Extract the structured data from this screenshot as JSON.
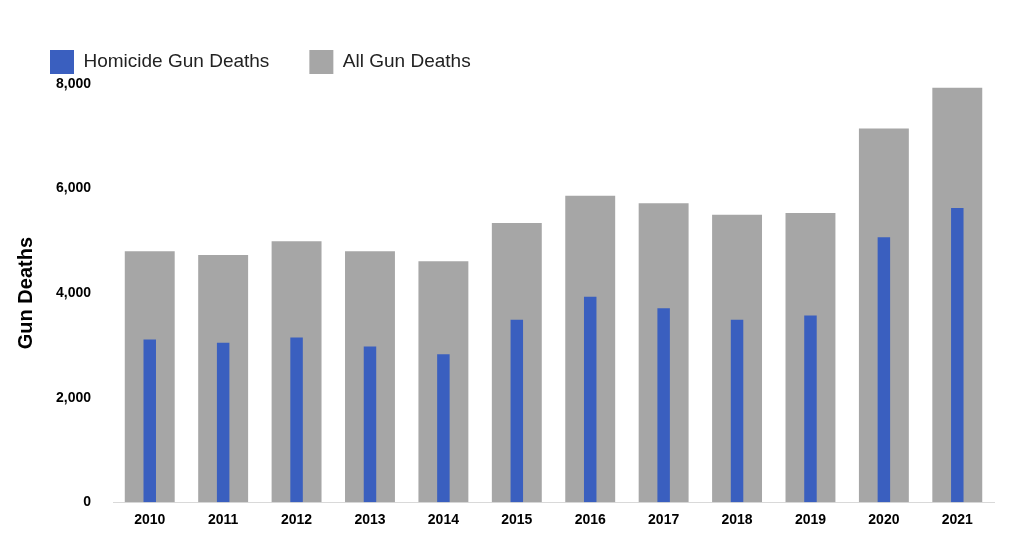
{
  "chart_data": {
    "type": "bar",
    "categories": [
      "2010",
      "2011",
      "2012",
      "2013",
      "2014",
      "2015",
      "2016",
      "2017",
      "2018",
      "2019",
      "2020",
      "2021"
    ],
    "series": [
      {
        "name": "All Gun Deaths",
        "color": "#a6a6a6",
        "values": [
          4800,
          4730,
          4990,
          4800,
          4610,
          5340,
          5860,
          5720,
          5500,
          5530,
          7150,
          7930
        ]
      },
      {
        "name": "Homicide Gun Deaths",
        "color": "#3a5fbf",
        "values": [
          3110,
          3050,
          3150,
          2980,
          2830,
          3490,
          3930,
          3710,
          3490,
          3570,
          5070,
          5630
        ]
      }
    ],
    "y_label": "Gun Deaths",
    "ylim": [
      0,
      8000
    ],
    "yticks": [
      0,
      {
        "value": 2000,
        "label": "2,000"
      },
      {
        "value": 4000,
        "label": "4,000"
      },
      {
        "value": 6000,
        "label": "6,000"
      },
      {
        "value": 8000,
        "label": "8,000"
      }
    ],
    "grid": false,
    "legend": "top-left",
    "stacked": false
  }
}
